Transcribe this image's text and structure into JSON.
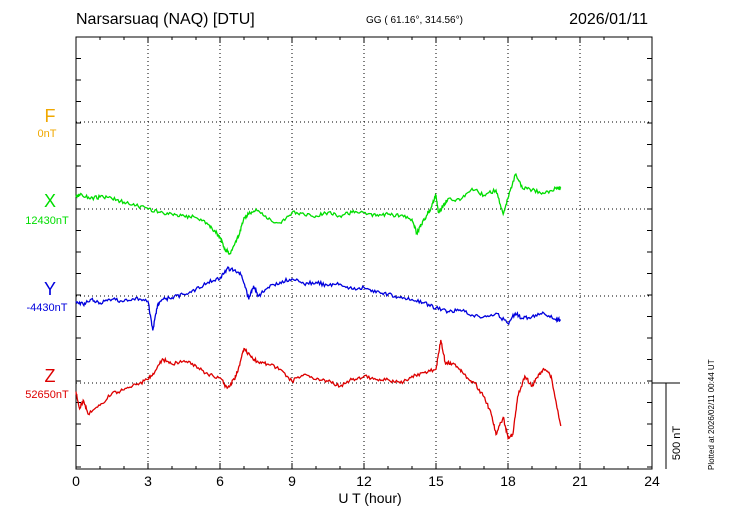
{
  "header": {
    "title": "Narsarsuaq (NAQ)  [DTU]",
    "coords": "GG ( 61.16°, 314.56°)",
    "date": "2026/01/11"
  },
  "footer": {
    "xlabel": "U T (hour)",
    "plotted": "Plotted at 2026/02/11 00:44 UT",
    "scale": "500 nT"
  },
  "components": [
    {
      "name": "F",
      "base": "0nT",
      "color": "#f0a800"
    },
    {
      "name": "X",
      "base": "12430nT",
      "color": "#00dd00"
    },
    {
      "name": "Y",
      "base": "-4430nT",
      "color": "#0000dd"
    },
    {
      "name": "Z",
      "base": "52650nT",
      "color": "#dd0000"
    }
  ],
  "chart_data": {
    "type": "line",
    "title": "Narsarsuaq (NAQ)  [DTU]",
    "xlabel": "U T (hour)",
    "xlim": [
      0,
      24
    ],
    "xticks": [
      0,
      3,
      6,
      9,
      12,
      15,
      18,
      21,
      24
    ],
    "scale_nT": 500,
    "grid": true,
    "series": [
      {
        "name": "X",
        "baseline_nT": 12430,
        "color": "#00dd00",
        "x": [
          0,
          0.2,
          0.6,
          1.0,
          1.5,
          2.0,
          2.5,
          3.0,
          3.5,
          4.0,
          4.5,
          5.0,
          5.5,
          5.8,
          6.0,
          6.2,
          6.4,
          6.6,
          6.8,
          7.0,
          7.2,
          7.5,
          8.0,
          8.5,
          9.0,
          9.5,
          10.0,
          10.5,
          11.0,
          11.5,
          12.0,
          12.5,
          13.0,
          13.5,
          14.0,
          14.2,
          14.4,
          14.6,
          14.8,
          15.0,
          15.1,
          15.3,
          15.5,
          16.0,
          16.5,
          17.0,
          17.5,
          17.8,
          18.0,
          18.3,
          18.6,
          19.0,
          19.5,
          20.0,
          20.2
        ],
        "values": [
          70,
          90,
          60,
          70,
          60,
          40,
          20,
          0,
          -20,
          -30,
          -40,
          -50,
          -90,
          -130,
          -170,
          -230,
          -260,
          -210,
          -150,
          -50,
          -30,
          0,
          -60,
          -80,
          -20,
          -30,
          -40,
          -20,
          -40,
          -20,
          -20,
          -40,
          -30,
          -40,
          -60,
          -140,
          -90,
          -40,
          10,
          80,
          -20,
          20,
          60,
          50,
          120,
          80,
          110,
          -30,
          60,
          200,
          120,
          110,
          90,
          120,
          120
        ]
      },
      {
        "name": "Y",
        "baseline_nT": -4430,
        "color": "#0000dd",
        "x": [
          0,
          0.3,
          0.6,
          1.0,
          1.5,
          2.0,
          2.5,
          3.0,
          3.2,
          3.4,
          3.6,
          4.0,
          4.5,
          5.0,
          5.5,
          6.0,
          6.3,
          6.6,
          6.9,
          7.2,
          7.4,
          7.6,
          8.0,
          8.5,
          9.0,
          9.5,
          10.0,
          10.5,
          11.0,
          11.5,
          12.0,
          12.5,
          13.0,
          13.5,
          14.0,
          14.5,
          15.0,
          15.5,
          16.0,
          16.5,
          17.0,
          17.5,
          18.0,
          18.3,
          18.6,
          19.0,
          19.5,
          20.0,
          20.2
        ],
        "values": [
          -30,
          -50,
          -20,
          -40,
          -20,
          -30,
          -10,
          -30,
          -200,
          -50,
          -20,
          -10,
          10,
          40,
          80,
          100,
          160,
          150,
          120,
          -20,
          60,
          0,
          50,
          80,
          100,
          70,
          80,
          60,
          70,
          40,
          50,
          20,
          10,
          -10,
          -20,
          -40,
          -70,
          -90,
          -80,
          -110,
          -120,
          -100,
          -160,
          -100,
          -130,
          -120,
          -100,
          -140,
          -140
        ]
      },
      {
        "name": "Z",
        "baseline_nT": 52650,
        "color": "#dd0000",
        "x": [
          0,
          0.15,
          0.3,
          0.5,
          1.0,
          1.5,
          2.0,
          2.5,
          3.0,
          3.3,
          3.6,
          4.0,
          4.5,
          5.0,
          5.5,
          6.0,
          6.3,
          6.6,
          6.8,
          7.0,
          7.3,
          7.6,
          8.0,
          8.5,
          9.0,
          9.5,
          10.0,
          10.5,
          11.0,
          11.5,
          12.0,
          12.5,
          13.0,
          13.5,
          14.0,
          14.5,
          15.0,
          15.2,
          15.4,
          15.6,
          16.0,
          16.3,
          16.6,
          17.0,
          17.3,
          17.5,
          17.8,
          18.0,
          18.2,
          18.4,
          18.7,
          19.0,
          19.3,
          19.5,
          19.8,
          20.2
        ],
        "values": [
          -50,
          -150,
          -100,
          -180,
          -130,
          -60,
          -40,
          -10,
          20,
          70,
          140,
          110,
          130,
          100,
          50,
          30,
          -30,
          20,
          100,
          200,
          150,
          120,
          110,
          80,
          10,
          50,
          20,
          10,
          -20,
          20,
          40,
          20,
          20,
          0,
          40,
          60,
          80,
          250,
          110,
          120,
          80,
          30,
          0,
          -80,
          -180,
          -300,
          -200,
          -320,
          -300,
          -80,
          40,
          -20,
          50,
          80,
          40,
          -250
        ]
      }
    ]
  }
}
